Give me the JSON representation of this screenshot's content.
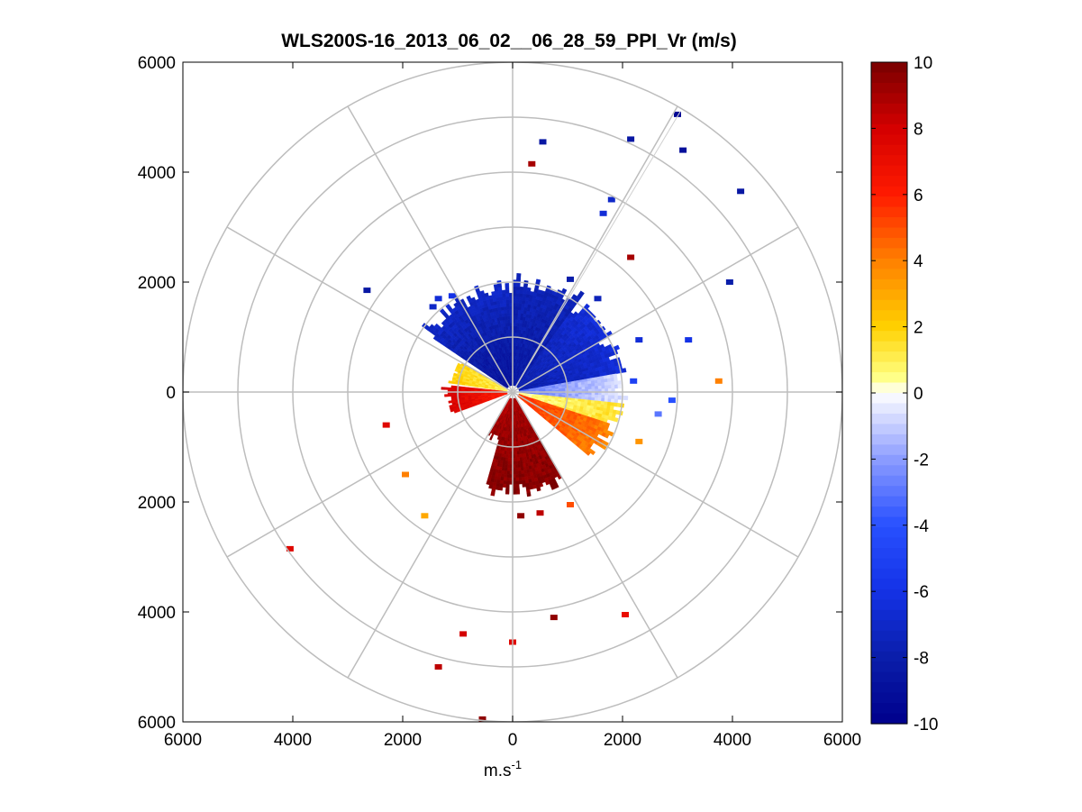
{
  "chart_data": {
    "type": "heatmap",
    "title": "WLS200S-16_2013_06_02__06_28_59_PPI_Vr (m/s)",
    "xlabel": "m.s",
    "xlabel_superscript": "-1",
    "ylabel": "",
    "xlim": [
      -6000,
      6000
    ],
    "ylim": [
      -6000,
      6000
    ],
    "x_ticks": [
      -6000,
      -4000,
      -2000,
      0,
      2000,
      4000,
      6000
    ],
    "x_tick_labels": [
      "6000",
      "4000",
      "2000",
      "0",
      "2000",
      "4000",
      "6000"
    ],
    "y_ticks": [
      6000,
      4000,
      2000,
      0,
      -2000,
      -4000,
      -6000
    ],
    "y_tick_labels": [
      "6000",
      "4000",
      "2000",
      "0",
      "2000",
      "4000",
      "6000"
    ],
    "range_rings_m": [
      1000,
      2000,
      3000,
      4000,
      5000,
      6000
    ],
    "spoke_angles_deg": [
      0,
      30,
      60,
      90,
      120,
      150,
      180,
      210,
      240,
      270,
      300,
      330
    ],
    "colorbar": {
      "min": -10,
      "max": 10,
      "ticks": [
        10,
        8,
        6,
        4,
        2,
        0,
        -2,
        -4,
        -6,
        -8,
        -10
      ],
      "tick_labels": [
        "10",
        "8",
        "6",
        "4",
        "2",
        "0",
        "-2",
        "-4",
        "-6",
        "-8",
        "-10"
      ],
      "colormap_stops": [
        {
          "v": -10,
          "c": "#00008c"
        },
        {
          "v": -8,
          "c": "#0a1eaa"
        },
        {
          "v": -6,
          "c": "#1432e6"
        },
        {
          "v": -4,
          "c": "#2850ff"
        },
        {
          "v": -2,
          "c": "#8c9cff"
        },
        {
          "v": 0,
          "c": "#ffffff"
        },
        {
          "v": 0.5,
          "c": "#ffff80"
        },
        {
          "v": 2,
          "c": "#ffd000"
        },
        {
          "v": 4,
          "c": "#ff8000"
        },
        {
          "v": 6,
          "c": "#ff1a00"
        },
        {
          "v": 8,
          "c": "#d40000"
        },
        {
          "v": 10,
          "c": "#780000"
        }
      ]
    },
    "sectors": [
      {
        "name": "north-west",
        "az_from": 304,
        "az_to": 360,
        "r_from": 120,
        "r_to": 1950,
        "v_from": -9,
        "v_to": -7
      },
      {
        "name": "north",
        "az_from": 0,
        "az_to": 36,
        "r_from": 120,
        "r_to": 2100,
        "v_from": -8.5,
        "v_to": -7.5
      },
      {
        "name": "north-east",
        "az_from": 36,
        "az_to": 80,
        "r_from": 120,
        "r_to": 2000,
        "v_from": -8,
        "v_to": -6.5
      },
      {
        "name": "east",
        "az_from": 80,
        "az_to": 96,
        "r_from": 120,
        "r_to": 2000,
        "v_from": -3,
        "v_to": -0.5
      },
      {
        "name": "east-south-east",
        "az_from": 96,
        "az_to": 108,
        "r_from": 120,
        "r_to": 2000,
        "v_from": 0.5,
        "v_to": 1.5
      },
      {
        "name": "south-east",
        "az_from": 108,
        "az_to": 130,
        "r_from": 120,
        "r_to": 1900,
        "v_from": 5.5,
        "v_to": 4
      },
      {
        "name": "south",
        "az_from": 150,
        "az_to": 196,
        "r_from": 120,
        "r_to": 1900,
        "v_from": 9,
        "v_to": 9.8
      },
      {
        "name": "south-west",
        "az_from": 196,
        "az_to": 210,
        "r_from": 120,
        "r_to": 900,
        "v_from": 8.5,
        "v_to": 9.5
      },
      {
        "name": "west",
        "az_from": 250,
        "az_to": 275,
        "r_from": 100,
        "r_to": 1200,
        "v_from": 6,
        "v_to": 8
      },
      {
        "name": "west-north-west",
        "az_from": 278,
        "az_to": 300,
        "r_from": 100,
        "r_to": 1100,
        "v_from": 1,
        "v_to": 2
      }
    ],
    "scatter_points": [
      {
        "x": 550,
        "y": 4550,
        "v": -8.5
      },
      {
        "x": 350,
        "y": 4150,
        "v": 9
      },
      {
        "x": 2150,
        "y": 4600,
        "v": -8.5
      },
      {
        "x": 3000,
        "y": 5050,
        "v": -9.5
      },
      {
        "x": 3100,
        "y": 4400,
        "v": -9
      },
      {
        "x": 4150,
        "y": 3650,
        "v": -8.5
      },
      {
        "x": 1800,
        "y": 3500,
        "v": -7
      },
      {
        "x": 1650,
        "y": 3250,
        "v": -6.5
      },
      {
        "x": 2150,
        "y": 2450,
        "v": 9
      },
      {
        "x": 3950,
        "y": 2000,
        "v": -8
      },
      {
        "x": 3200,
        "y": 950,
        "v": -6
      },
      {
        "x": 2300,
        "y": 950,
        "v": -6.5
      },
      {
        "x": 3750,
        "y": 200,
        "v": 4
      },
      {
        "x": 2200,
        "y": 200,
        "v": -5
      },
      {
        "x": 2900,
        "y": -150,
        "v": -4
      },
      {
        "x": 2650,
        "y": -400,
        "v": -3
      },
      {
        "x": 2300,
        "y": -900,
        "v": 3.5
      },
      {
        "x": 1050,
        "y": -2050,
        "v": 5
      },
      {
        "x": 500,
        "y": -2200,
        "v": 8.5
      },
      {
        "x": 150,
        "y": -2250,
        "v": 9.5
      },
      {
        "x": 750,
        "y": -4100,
        "v": 9.5
      },
      {
        "x": 2050,
        "y": -4050,
        "v": 7
      },
      {
        "x": 0,
        "y": -4550,
        "v": 7.5
      },
      {
        "x": -900,
        "y": -4400,
        "v": 8
      },
      {
        "x": -1350,
        "y": -5000,
        "v": 8.5
      },
      {
        "x": -550,
        "y": -5950,
        "v": 9.5
      },
      {
        "x": -4050,
        "y": -2850,
        "v": 7.5
      },
      {
        "x": -1600,
        "y": -2250,
        "v": 3
      },
      {
        "x": -1950,
        "y": -1500,
        "v": 4
      },
      {
        "x": -2300,
        "y": -600,
        "v": 7.5
      },
      {
        "x": -2650,
        "y": 1850,
        "v": -8.5
      },
      {
        "x": -1350,
        "y": 1700,
        "v": -6.5
      },
      {
        "x": -1450,
        "y": 1550,
        "v": -7
      },
      {
        "x": -1100,
        "y": 1750,
        "v": -6
      },
      {
        "x": 1050,
        "y": 2050,
        "v": -8
      },
      {
        "x": 1550,
        "y": 1700,
        "v": -7.5
      }
    ]
  }
}
